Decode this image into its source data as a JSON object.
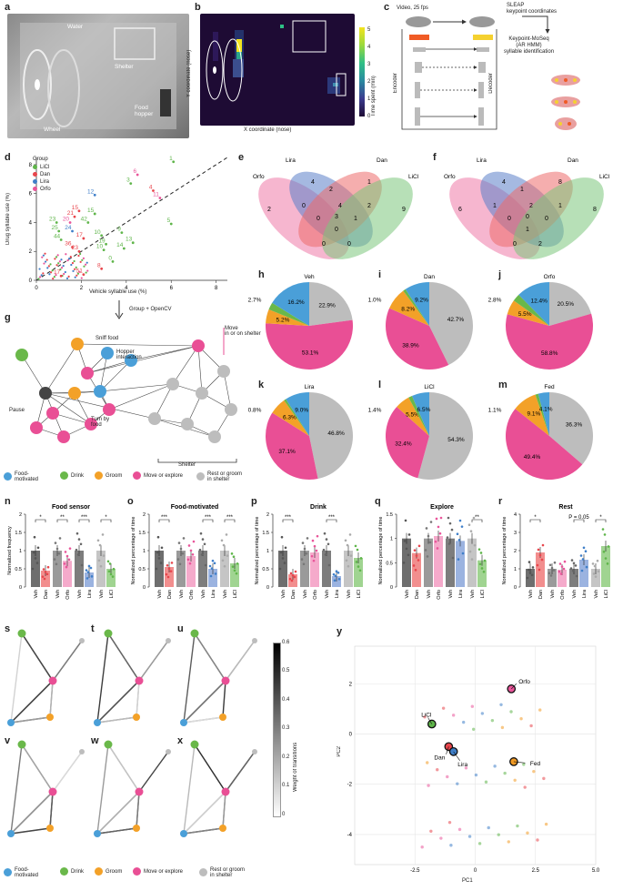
{
  "panels": {
    "a": "a",
    "b": "b",
    "c": "c",
    "d": "d",
    "e": "e",
    "f": "f",
    "g": "g",
    "h": "h",
    "i": "i",
    "j": "j",
    "k": "k",
    "l": "l",
    "m": "m",
    "n": "n",
    "o": "o",
    "p": "p",
    "q": "q",
    "r": "r",
    "s": "s",
    "t": "t",
    "u": "u",
    "v": "v",
    "w": "w",
    "x": "x",
    "y": "y"
  },
  "photo_labels": {
    "water": "Water",
    "shelter": "Shelter",
    "wheel": "Wheel",
    "food_hopper": "Food\nhopper"
  },
  "heatmap": {
    "ylabel": "Y coordinate (nose)",
    "xlabel": "X coordinate (nose)",
    "colorbar_label": "Time spent (min)",
    "colorbar_ticks": [
      "0",
      "1",
      "2",
      "3",
      "4",
      "5"
    ]
  },
  "pipeline": {
    "video": "Video, 25 fps",
    "sleap": "SLEAP\nkeypoint coordinates",
    "moseq": "Keypoint-MoSeq\n(AR HMM)\nsyllable identification",
    "encoder": "Encoder",
    "decoder": "Decoder"
  },
  "scatter_d": {
    "xlabel": "Vehicle syllable use (%)",
    "ylabel": "Drug syllable use (%)",
    "xticks": [
      "0",
      "2",
      "4",
      "6",
      "8"
    ],
    "yticks": [
      "0",
      "2",
      "4",
      "6",
      "8"
    ],
    "legend_title": "Group",
    "legend": [
      {
        "name": "LiCl",
        "color": "#5fb54a"
      },
      {
        "name": "Dan",
        "color": "#e8454c"
      },
      {
        "name": "Lira",
        "color": "#3f7fc9"
      },
      {
        "name": "Orfo",
        "color": "#e9559a"
      }
    ],
    "arrow_label": "Group + OpenCV"
  },
  "chart_data": [
    {
      "type": "scatter",
      "xlabel": "Vehicle syllable use (%)",
      "ylabel": "Drug syllable use (%)",
      "xlim": [
        0,
        8.5
      ],
      "ylim": [
        0,
        8.5
      ],
      "points": [
        {
          "x": 6.1,
          "y": 8.2,
          "label": "1",
          "color": "#5fb54a"
        },
        {
          "x": 4.2,
          "y": 6.7,
          "label": "3",
          "color": "#5fb54a"
        },
        {
          "x": 5.2,
          "y": 6.2,
          "label": "4",
          "color": "#e8454c"
        },
        {
          "x": 4.5,
          "y": 7.3,
          "label": "6",
          "color": "#e9559a"
        },
        {
          "x": 2.6,
          "y": 5.9,
          "label": "12",
          "color": "#3f7fc9"
        },
        {
          "x": 1.9,
          "y": 4.8,
          "label": "15",
          "color": "#e8454c"
        },
        {
          "x": 2.6,
          "y": 4.6,
          "label": "15",
          "color": "#5fb54a"
        },
        {
          "x": 1.7,
          "y": 4.4,
          "label": "21",
          "color": "#e8454c"
        },
        {
          "x": 0.9,
          "y": 4.0,
          "label": "23",
          "color": "#5fb54a"
        },
        {
          "x": 1.5,
          "y": 4.0,
          "label": "20",
          "color": "#e9559a"
        },
        {
          "x": 2.3,
          "y": 4.0,
          "label": "42",
          "color": "#5fb54a"
        },
        {
          "x": 1.0,
          "y": 3.4,
          "label": "25",
          "color": "#5fb54a"
        },
        {
          "x": 1.6,
          "y": 3.4,
          "label": "24",
          "color": "#3f7fc9"
        },
        {
          "x": 1.1,
          "y": 2.8,
          "label": "44",
          "color": "#5fb54a"
        },
        {
          "x": 1.6,
          "y": 2.3,
          "label": "36",
          "color": "#e8454c"
        },
        {
          "x": 1.9,
          "y": 2.0,
          "label": "23",
          "color": "#e8454c"
        },
        {
          "x": 2.1,
          "y": 2.9,
          "label": "17",
          "color": "#e8454c"
        },
        {
          "x": 2.9,
          "y": 3.1,
          "label": "10",
          "color": "#5fb54a"
        },
        {
          "x": 3.1,
          "y": 2.5,
          "label": "19",
          "color": "#5fb54a"
        },
        {
          "x": 3.0,
          "y": 2.1,
          "label": "10",
          "color": "#5fb54a"
        },
        {
          "x": 3.4,
          "y": 1.3,
          "label": "0",
          "color": "#5fb54a"
        },
        {
          "x": 2.9,
          "y": 0.8,
          "label": "8",
          "color": "#e8454c"
        },
        {
          "x": 2.1,
          "y": 0.4,
          "label": "51",
          "color": "#e8454c"
        },
        {
          "x": 1.1,
          "y": 0.3,
          "label": "17",
          "color": "#e8454c"
        },
        {
          "x": 3.8,
          "y": 3.3,
          "label": "9",
          "color": "#5fb54a"
        },
        {
          "x": 4.3,
          "y": 2.6,
          "label": "13",
          "color": "#5fb54a"
        },
        {
          "x": 3.9,
          "y": 2.2,
          "label": "14",
          "color": "#5fb54a"
        },
        {
          "x": 6.0,
          "y": 3.9,
          "label": "5",
          "color": "#5fb54a"
        },
        {
          "x": 5.5,
          "y": 5.7,
          "label": "11",
          "color": "#e9559a"
        }
      ]
    },
    {
      "type": "pie",
      "title": "Veh",
      "labels": [
        "Rest or groom in shelter",
        "Move or explore",
        "Groom",
        "Drink",
        "Food-motivated"
      ],
      "values": [
        22.9,
        53.1,
        5.2,
        2.7,
        16.2
      ]
    },
    {
      "type": "pie",
      "title": "Dan",
      "labels": [
        "Rest or groom in shelter",
        "Move or explore",
        "Groom",
        "Drink",
        "Food-motivated"
      ],
      "values": [
        42.7,
        38.9,
        8.2,
        1.0,
        9.2
      ]
    },
    {
      "type": "pie",
      "title": "Orfo",
      "labels": [
        "Rest or groom in shelter",
        "Move or explore",
        "Groom",
        "Drink",
        "Food-motivated"
      ],
      "values": [
        20.5,
        58.8,
        5.5,
        2.8,
        12.4
      ]
    },
    {
      "type": "pie",
      "title": "Lira",
      "labels": [
        "Rest or groom in shelter",
        "Move or explore",
        "Groom",
        "Drink",
        "Food-motivated"
      ],
      "values": [
        46.8,
        37.1,
        6.3,
        0.8,
        9.0
      ]
    },
    {
      "type": "pie",
      "title": "LiCl",
      "labels": [
        "Rest or groom in shelter",
        "Move or explore",
        "Groom",
        "Drink",
        "Food-motivated"
      ],
      "values": [
        54.3,
        32.4,
        5.5,
        1.4,
        6.5
      ]
    },
    {
      "type": "pie",
      "title": "Fed",
      "labels": [
        "Rest or groom in shelter",
        "Move or explore",
        "Groom",
        "Drink",
        "Food-motivated"
      ],
      "values": [
        36.3,
        49.4,
        9.1,
        1.1,
        4.1
      ]
    },
    {
      "type": "bar",
      "title": "Food sensor",
      "ylabel": "Normalized frequency",
      "ylim": [
        0,
        2
      ],
      "categories": [
        "Veh",
        "Dan",
        "Veh",
        "Orfo",
        "Veh",
        "Lira",
        "Veh",
        "LiCl"
      ],
      "values": [
        1.0,
        0.45,
        1.0,
        0.72,
        1.0,
        0.4,
        1.0,
        0.5
      ],
      "significance": [
        "*",
        "**",
        "***",
        "*"
      ]
    },
    {
      "type": "bar",
      "title": "Food-motivated",
      "ylabel": "Normalized percentage of time",
      "ylim": [
        0,
        2
      ],
      "categories": [
        "Veh",
        "Dan",
        "Veh",
        "Orfo",
        "Veh",
        "Lira",
        "Veh",
        "LiCl"
      ],
      "values": [
        1.0,
        0.55,
        1.0,
        0.85,
        1.0,
        0.5,
        1.0,
        0.65
      ],
      "significance": [
        "***",
        "***",
        "***"
      ]
    },
    {
      "type": "bar",
      "title": "Drink",
      "ylabel": "Normalized percentage of time",
      "ylim": [
        0,
        2
      ],
      "categories": [
        "Veh",
        "Dan",
        "Veh",
        "Orfo",
        "Veh",
        "Lira",
        "Veh",
        "LiCl"
      ],
      "values": [
        1.0,
        0.35,
        1.0,
        0.95,
        1.0,
        0.3,
        1.0,
        0.8
      ],
      "significance": [
        "***",
        "***"
      ]
    },
    {
      "type": "bar",
      "title": "Explore",
      "ylabel": "Normalized percentage of time",
      "ylim": [
        0,
        1.5
      ],
      "categories": [
        "Veh",
        "Dan",
        "Veh",
        "Orfo",
        "Veh",
        "Lira",
        "Veh",
        "LiCl"
      ],
      "values": [
        1.0,
        0.7,
        1.0,
        1.05,
        1.0,
        0.95,
        1.0,
        0.55
      ],
      "significance": [
        "**"
      ]
    },
    {
      "type": "bar",
      "title": "Rest",
      "ylabel": "Normalized percentage of time",
      "ylim": [
        0,
        4
      ],
      "categories": [
        "Veh",
        "Dan",
        "Veh",
        "Orfo",
        "Veh",
        "Lira",
        "Veh",
        "LiCl"
      ],
      "values": [
        1.0,
        1.9,
        1.0,
        0.95,
        1.0,
        1.5,
        1.0,
        2.25
      ],
      "significance": [
        "*",
        "P = 0.05",
        "*"
      ]
    },
    {
      "type": "scatter",
      "xlabel": "PC1",
      "ylabel": "PC2",
      "xlim": [
        -5,
        5
      ],
      "ylim": [
        -5.2,
        3.5
      ],
      "points": [
        {
          "x": 1.5,
          "y": 1.8,
          "label": "Orfo",
          "color": "#e9559a"
        },
        {
          "x": -1.8,
          "y": 0.4,
          "label": "LiCl",
          "color": "#5fb54a"
        },
        {
          "x": -1.1,
          "y": -0.5,
          "label": "Dan",
          "color": "#e8454c"
        },
        {
          "x": -0.9,
          "y": -0.7,
          "label": "Lira",
          "color": "#3f7fc9"
        },
        {
          "x": 1.6,
          "y": -1.1,
          "label": "Fed",
          "color": "#f29b24"
        }
      ]
    }
  ],
  "venn_e": {
    "labels": [
      "Orfo",
      "Lira",
      "Dan",
      "LiCl"
    ],
    "numbers": [
      "2",
      "4",
      "0",
      "1",
      "2",
      "4",
      "0",
      "3",
      "1",
      "9",
      "2",
      "0",
      "0",
      "1"
    ]
  },
  "venn_f": {
    "labels": [
      "Orfo",
      "Lira",
      "Dan",
      "LiCl"
    ],
    "numbers": [
      "6",
      "4",
      "1",
      "8",
      "2",
      "1",
      "0",
      "8",
      "0",
      "1",
      "0",
      "0",
      "2",
      "1"
    ]
  },
  "graph_g": {
    "labels": {
      "sniff": "Sniff food",
      "hopper": "Hopper\ninteraction",
      "move": "Move\nin or on shelter",
      "pause": "Pause",
      "turn": "Turn by\nfood",
      "shelter": "Shelter"
    }
  },
  "categories_legend": [
    {
      "name": "Food-\nmotivated",
      "color": "#4a9fd8"
    },
    {
      "name": "Drink",
      "color": "#6ab84a"
    },
    {
      "name": "Groom",
      "color": "#f3a128"
    },
    {
      "name": "Move or explore",
      "color": "#e94f95"
    },
    {
      "name": "Rest or groom\nin shelter",
      "color": "#bdbdbd"
    }
  ],
  "bars_xcats": [
    "Veh",
    "Dan",
    "Veh",
    "Orfo",
    "Veh",
    "Lira",
    "Veh",
    "LiCl"
  ],
  "pca": {
    "xlabel": "PC1",
    "ylabel": "PC2",
    "xticks": [
      "-2.5",
      "0",
      "2.5",
      "5.0"
    ],
    "yticks": [
      "2",
      "0",
      "-2",
      "-4"
    ]
  },
  "weights": {
    "label": "Weight of transitions",
    "ticks": [
      "0.6",
      "0.5",
      "0.4",
      "0.3",
      "0.2",
      "0.1",
      "0"
    ]
  },
  "colors": {
    "food": "#4a9fd8",
    "drink": "#6ab84a",
    "groom": "#f3a128",
    "move": "#e94f95",
    "rest": "#bdbdbd",
    "dan": "#e8454c",
    "orfo": "#e9559a",
    "lira": "#3f7fc9",
    "licl": "#5fb54a",
    "fed": "#f29b24",
    "veh": "#555555"
  }
}
